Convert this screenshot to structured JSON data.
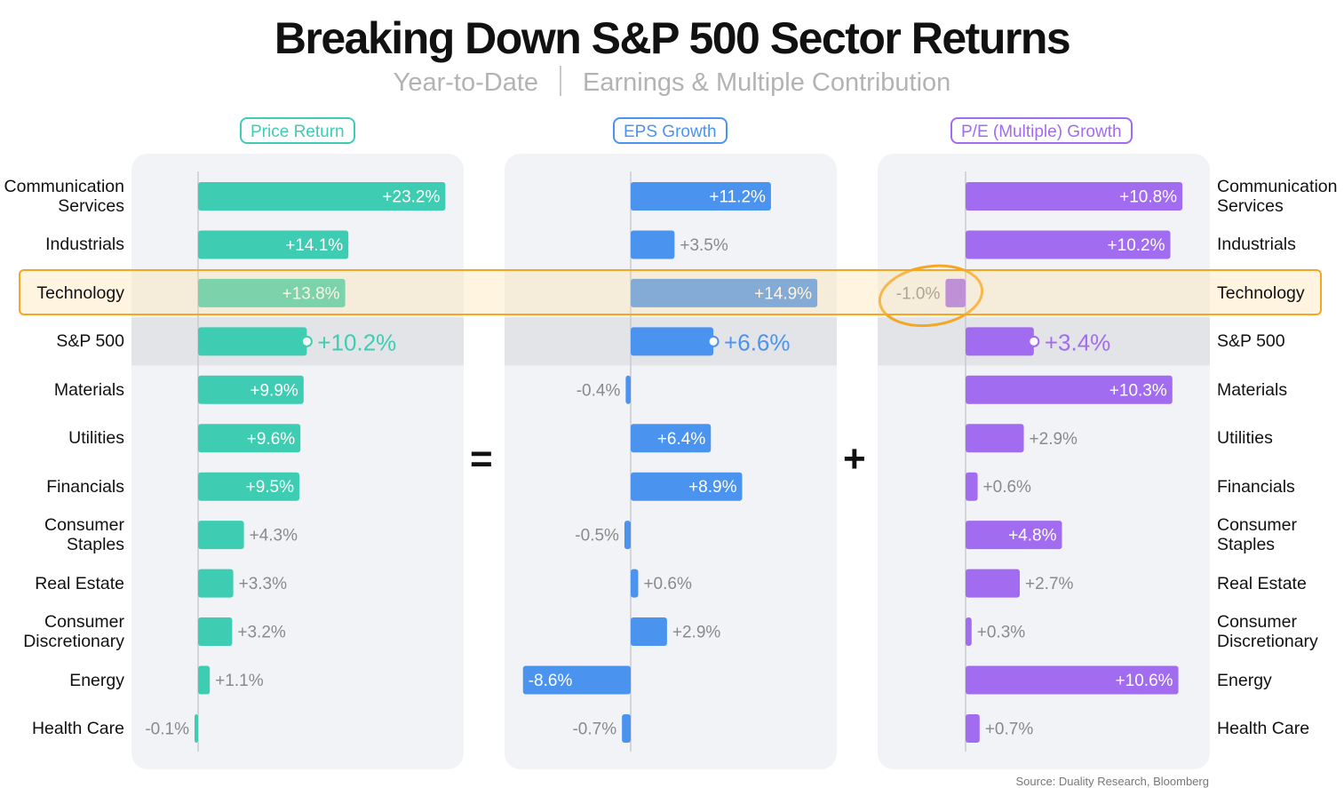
{
  "title": "Breaking Down S&P 500 Sector Returns",
  "subtitle_left": "Year-to-Date",
  "subtitle_right": "Earnings & Multiple Contribution",
  "source": "Source: Duality Research, Bloomberg",
  "operators": {
    "equals": "=",
    "plus": "+"
  },
  "colors": {
    "price": "#3ecdb2",
    "eps": "#4a94f0",
    "pe": "#a26cf0",
    "highlight": "#f5a623"
  },
  "chart_data": {
    "type": "bar",
    "orientation": "horizontal",
    "categories": [
      "Communication Services",
      "Industrials",
      "Technology",
      "S&P 500",
      "Materials",
      "Utilities",
      "Financials",
      "Consumer Staples",
      "Real Estate",
      "Consumer Discretionary",
      "Energy",
      "Health Care"
    ],
    "category_lines": [
      [
        "Communication",
        "Services"
      ],
      [
        "Industrials"
      ],
      [
        "Technology"
      ],
      [
        "S&P 500"
      ],
      [
        "Materials"
      ],
      [
        "Utilities"
      ],
      [
        "Financials"
      ],
      [
        "Consumer",
        "Staples"
      ],
      [
        "Real Estate"
      ],
      [
        "Consumer",
        "Discretionary"
      ],
      [
        "Energy"
      ],
      [
        "Health Care"
      ]
    ],
    "highlighted_category": "Technology",
    "benchmark_category": "S&P 500",
    "series": [
      {
        "name": "Price Return",
        "values": [
          23.2,
          14.1,
          13.8,
          10.2,
          9.9,
          9.6,
          9.5,
          4.3,
          3.3,
          3.2,
          1.1,
          -0.1
        ],
        "labels": [
          "+23.2%",
          "+14.1%",
          "+13.8%",
          "+10.2%",
          "+9.9%",
          "+9.6%",
          "+9.5%",
          "+4.3%",
          "+3.3%",
          "+3.2%",
          "+1.1%",
          "-0.1%"
        ]
      },
      {
        "name": "EPS Growth",
        "values": [
          11.2,
          3.5,
          14.9,
          6.6,
          -0.4,
          6.4,
          8.9,
          -0.5,
          0.6,
          2.9,
          -8.6,
          -0.7
        ],
        "labels": [
          "+11.2%",
          "+3.5%",
          "+14.9%",
          "+6.6%",
          "-0.4%",
          "+6.4%",
          "+8.9%",
          "-0.5%",
          "+0.6%",
          "+2.9%",
          "-8.6%",
          "-0.7%"
        ]
      },
      {
        "name": "P/E (Multiple) Growth",
        "values": [
          10.8,
          10.2,
          -1.0,
          3.4,
          10.3,
          2.9,
          0.6,
          4.8,
          2.7,
          0.3,
          10.6,
          0.7
        ],
        "labels": [
          "+10.8%",
          "+10.2%",
          "-1.0%",
          "+3.4%",
          "+10.3%",
          "+2.9%",
          "+0.6%",
          "+4.8%",
          "+2.7%",
          "+0.3%",
          "+10.6%",
          "+0.7%"
        ]
      }
    ]
  }
}
